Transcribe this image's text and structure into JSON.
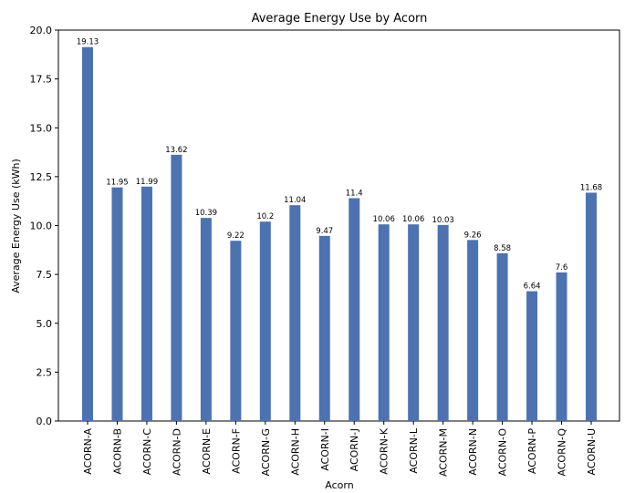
{
  "chart_data": {
    "type": "bar",
    "title": "Average Energy Use by Acorn",
    "xlabel": "Acorn",
    "ylabel": "Average Energy Use (kWh)",
    "categories": [
      "ACORN-A",
      "ACORN-B",
      "ACORN-C",
      "ACORN-D",
      "ACORN-E",
      "ACORN-F",
      "ACORN-G",
      "ACORN-H",
      "ACORN-I",
      "ACORN-J",
      "ACORN-K",
      "ACORN-L",
      "ACORN-M",
      "ACORN-N",
      "ACORN-O",
      "ACORN-P",
      "ACORN-Q",
      "ACORN-U"
    ],
    "values": [
      19.13,
      11.95,
      11.99,
      13.62,
      10.39,
      9.22,
      10.2,
      11.04,
      9.47,
      11.4,
      10.06,
      10.06,
      10.03,
      9.26,
      8.58,
      6.64,
      7.6,
      11.68
    ],
    "data_labels": [
      "19.13",
      "11.95",
      "11.99",
      "13.62",
      "10.39",
      "9.22",
      "10.2",
      "11.04",
      "9.47",
      "11.4",
      "10.06",
      "10.06",
      "10.03",
      "9.26",
      "8.58",
      "6.64",
      "7.6",
      "11.68"
    ],
    "yticks": [
      "0.0",
      "2.5",
      "5.0",
      "7.5",
      "10.0",
      "12.5",
      "15.0",
      "17.5",
      "20.0"
    ],
    "ylim": [
      0,
      20
    ],
    "grid": false,
    "bar_color": "#4c72b0"
  }
}
